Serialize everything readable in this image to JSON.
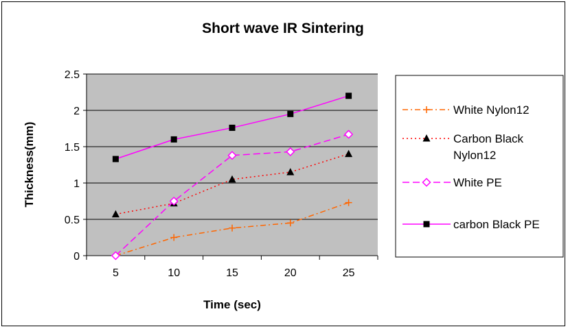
{
  "chart_data": {
    "type": "line",
    "title": "Short wave IR Sintering",
    "xlabel": "Time (sec)",
    "ylabel": "Thickness(mm)",
    "categories": [
      "5",
      "10",
      "15",
      "20",
      "25"
    ],
    "ylim": [
      0,
      2.5
    ],
    "yticks": [
      "0",
      "0.5",
      "1",
      "1.5",
      "2",
      "2.5"
    ],
    "grid": "horizontal",
    "plot_background": "#c0c0c0",
    "legend_position": "right",
    "series": [
      {
        "name": "White Nylon12",
        "values": [
          0.0,
          0.25,
          0.38,
          0.45,
          0.73
        ],
        "color": "#ff6600",
        "dash": "dash-dot",
        "marker": "plus"
      },
      {
        "name": "Carbon Black Nylon12",
        "values": [
          0.57,
          0.72,
          1.05,
          1.15,
          1.4
        ],
        "color": "#ff0000",
        "dash": "dotted",
        "marker": "triangle"
      },
      {
        "name": "White PE",
        "values": [
          0.0,
          0.75,
          1.38,
          1.43,
          1.67
        ],
        "color": "#ff00ff",
        "dash": "dashed",
        "marker": "diamond"
      },
      {
        "name": "carbon Black PE",
        "values": [
          1.33,
          1.6,
          1.76,
          1.95,
          2.2
        ],
        "color": "#ff00ff",
        "dash": "solid",
        "marker": "square"
      }
    ]
  }
}
